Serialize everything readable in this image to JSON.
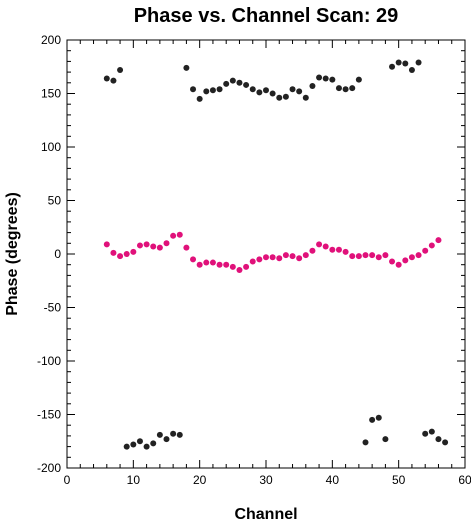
{
  "chart_data": {
    "type": "scatter",
    "title": "Phase vs. Channel Scan: 29",
    "xlabel": "Channel",
    "ylabel": "Phase (degrees)",
    "xlim": [
      0,
      60
    ],
    "ylim": [
      -200,
      200
    ],
    "xticks": [
      0,
      10,
      20,
      30,
      40,
      50,
      60
    ],
    "yticks": [
      -200,
      -150,
      -100,
      -50,
      0,
      50,
      100,
      150,
      200
    ],
    "grid": false,
    "colors": {
      "series_a": "#222222",
      "series_b": "#e0117a"
    },
    "series": [
      {
        "color": "#222222",
        "points": [
          [
            6,
            164
          ],
          [
            7,
            162
          ],
          [
            8,
            172
          ],
          [
            18,
            174
          ],
          [
            19,
            154
          ],
          [
            20,
            145
          ],
          [
            21,
            152
          ],
          [
            22,
            153
          ],
          [
            23,
            154
          ],
          [
            24,
            159
          ],
          [
            25,
            162
          ],
          [
            26,
            160
          ],
          [
            27,
            158
          ],
          [
            28,
            154
          ],
          [
            29,
            151
          ],
          [
            30,
            153
          ],
          [
            31,
            150
          ],
          [
            32,
            146
          ],
          [
            33,
            147
          ],
          [
            34,
            154
          ],
          [
            35,
            152
          ],
          [
            36,
            146
          ],
          [
            37,
            157
          ],
          [
            38,
            165
          ],
          [
            39,
            164
          ],
          [
            40,
            163
          ],
          [
            41,
            155
          ],
          [
            42,
            154
          ],
          [
            43,
            155
          ],
          [
            44,
            163
          ],
          [
            49,
            175
          ],
          [
            50,
            179
          ],
          [
            51,
            178
          ],
          [
            52,
            172
          ],
          [
            53,
            179
          ],
          [
            9,
            -180
          ],
          [
            10,
            -178
          ],
          [
            11,
            -175
          ],
          [
            12,
            -180
          ],
          [
            13,
            -177
          ],
          [
            14,
            -169
          ],
          [
            15,
            -173
          ],
          [
            16,
            -168
          ],
          [
            17,
            -169
          ],
          [
            45,
            -176
          ],
          [
            46,
            -155
          ],
          [
            47,
            -153
          ],
          [
            48,
            -173
          ],
          [
            54,
            -168
          ],
          [
            55,
            -166
          ],
          [
            56,
            -173
          ],
          [
            57,
            -176
          ]
        ]
      },
      {
        "color": "#e0117a",
        "points": [
          [
            6,
            9
          ],
          [
            7,
            1
          ],
          [
            8,
            -2
          ],
          [
            9,
            0
          ],
          [
            10,
            2
          ],
          [
            11,
            8
          ],
          [
            12,
            9
          ],
          [
            13,
            7
          ],
          [
            14,
            6
          ],
          [
            15,
            10
          ],
          [
            16,
            17
          ],
          [
            17,
            18
          ],
          [
            18,
            6
          ],
          [
            19,
            -5
          ],
          [
            20,
            -10
          ],
          [
            21,
            -8
          ],
          [
            22,
            -8
          ],
          [
            23,
            -10
          ],
          [
            24,
            -10
          ],
          [
            25,
            -12
          ],
          [
            26,
            -15
          ],
          [
            27,
            -12
          ],
          [
            28,
            -7
          ],
          [
            29,
            -5
          ],
          [
            30,
            -3
          ],
          [
            31,
            -3
          ],
          [
            32,
            -4
          ],
          [
            33,
            -1
          ],
          [
            34,
            -2
          ],
          [
            35,
            -4
          ],
          [
            36,
            -1
          ],
          [
            37,
            3
          ],
          [
            38,
            9
          ],
          [
            39,
            7
          ],
          [
            40,
            4
          ],
          [
            41,
            4
          ],
          [
            42,
            2
          ],
          [
            43,
            -2
          ],
          [
            44,
            -2
          ],
          [
            45,
            -1
          ],
          [
            46,
            -1
          ],
          [
            47,
            -3
          ],
          [
            48,
            -1
          ],
          [
            49,
            -7
          ],
          [
            50,
            -10
          ],
          [
            51,
            -6
          ],
          [
            52,
            -3
          ],
          [
            53,
            -1
          ],
          [
            54,
            3
          ],
          [
            55,
            8
          ],
          [
            56,
            13
          ]
        ]
      }
    ]
  }
}
